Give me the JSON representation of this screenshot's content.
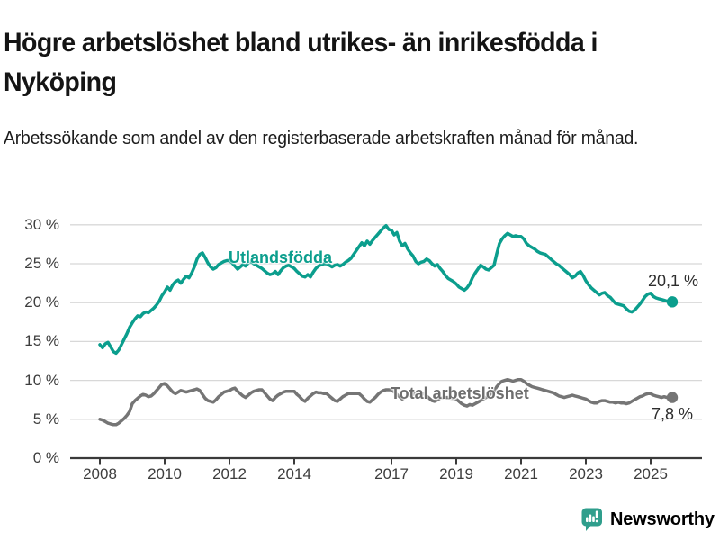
{
  "header": {
    "title": "Högre arbetslöshet bland utrikes- än inrikesfödda i Nyköping",
    "subtitle": "Arbetssökande som andel av den registerbaserade arbetskraften månad för månad."
  },
  "chart_data": {
    "type": "line",
    "title": "Högre arbetslöshet bland utrikes- än inrikesfödda i Nyköping",
    "subtitle": "Arbetssökande som andel av den registerbaserade arbetskraften månad för månad.",
    "unit": "%",
    "grid": "horizontal",
    "legend_position": "inline-annotations",
    "x_axis": {
      "start_year": 2008,
      "points_per_year": 12,
      "tick_years": [
        2008,
        2010,
        2012,
        2014,
        2017,
        2019,
        2021,
        2023,
        2025
      ]
    },
    "y_axis": {
      "ticks": [
        0,
        5,
        10,
        15,
        20,
        25,
        30
      ],
      "tick_suffix": " %",
      "ylim": [
        0,
        31
      ]
    },
    "series": [
      {
        "name": "Utlandsfödda",
        "color": "#0b9e8d",
        "end_label": "20,1 %",
        "end_value": 20.1,
        "values": [
          14.6,
          14.2,
          14.7,
          14.9,
          14.3,
          13.7,
          13.5,
          13.9,
          14.6,
          15.3,
          16.0,
          16.8,
          17.4,
          17.9,
          18.3,
          18.2,
          18.6,
          18.8,
          18.7,
          19.0,
          19.3,
          19.7,
          20.2,
          20.9,
          21.4,
          22.0,
          21.6,
          22.3,
          22.7,
          22.9,
          22.5,
          23.0,
          23.4,
          23.2,
          23.8,
          24.6,
          25.6,
          26.2,
          26.4,
          25.8,
          25.1,
          24.6,
          24.3,
          24.5,
          24.9,
          25.1,
          25.3,
          25.4,
          25.4,
          25.1,
          24.7,
          24.3,
          24.6,
          24.9,
          24.7,
          25.1,
          25.3,
          25.0,
          24.8,
          24.6,
          24.4,
          24.1,
          23.8,
          23.6,
          23.7,
          24.0,
          23.6,
          24.1,
          24.5,
          24.7,
          24.8,
          24.6,
          24.4,
          24.0,
          23.7,
          23.4,
          23.3,
          23.6,
          23.3,
          23.9,
          24.4,
          24.7,
          24.9,
          25.0,
          25.0,
          24.8,
          24.6,
          24.8,
          24.9,
          24.7,
          24.9,
          25.2,
          25.4,
          25.7,
          26.2,
          26.7,
          27.2,
          27.7,
          27.3,
          27.9,
          27.5,
          28.0,
          28.4,
          28.8,
          29.2,
          29.6,
          29.9,
          29.4,
          29.3,
          28.7,
          29.0,
          27.9,
          27.3,
          27.6,
          26.9,
          26.4,
          26.0,
          25.3,
          25.0,
          25.2,
          25.3,
          25.6,
          25.4,
          25.0,
          24.7,
          24.9,
          24.4,
          24.0,
          23.5,
          23.1,
          22.9,
          22.7,
          22.4,
          22.0,
          21.8,
          21.6,
          21.9,
          22.4,
          23.2,
          23.8,
          24.3,
          24.8,
          24.6,
          24.3,
          24.2,
          24.5,
          24.8,
          26.3,
          27.6,
          28.2,
          28.6,
          28.9,
          28.7,
          28.5,
          28.6,
          28.5,
          28.5,
          28.2,
          27.6,
          27.3,
          27.1,
          26.9,
          26.6,
          26.4,
          26.3,
          26.2,
          25.9,
          25.6,
          25.3,
          25.0,
          24.8,
          24.5,
          24.2,
          23.9,
          23.6,
          23.2,
          23.4,
          23.8,
          24.0,
          23.5,
          22.8,
          22.3,
          21.9,
          21.6,
          21.3,
          21.0,
          21.2,
          21.3,
          20.9,
          20.7,
          20.3,
          19.9,
          19.8,
          19.7,
          19.6,
          19.2,
          18.9,
          18.8,
          19.0,
          19.4,
          19.8,
          20.3,
          20.8,
          21.1,
          21.2,
          20.8,
          20.6,
          20.5,
          20.4,
          20.3,
          20.2,
          20.0,
          20.1
        ]
      },
      {
        "name": "Total arbetslöshet",
        "color": "#757575",
        "end_label": "7,8 %",
        "end_value": 7.8,
        "values": [
          5.0,
          4.9,
          4.7,
          4.5,
          4.4,
          4.3,
          4.3,
          4.5,
          4.8,
          5.1,
          5.5,
          6.0,
          7.0,
          7.4,
          7.7,
          8.0,
          8.2,
          8.1,
          7.9,
          8.0,
          8.3,
          8.7,
          9.1,
          9.5,
          9.6,
          9.3,
          8.9,
          8.5,
          8.3,
          8.5,
          8.7,
          8.6,
          8.5,
          8.6,
          8.7,
          8.8,
          8.9,
          8.7,
          8.2,
          7.7,
          7.4,
          7.3,
          7.2,
          7.5,
          7.9,
          8.2,
          8.5,
          8.6,
          8.7,
          8.9,
          9.0,
          8.6,
          8.3,
          8.0,
          7.8,
          8.1,
          8.4,
          8.6,
          8.7,
          8.8,
          8.8,
          8.4,
          8.0,
          7.6,
          7.4,
          7.8,
          8.1,
          8.3,
          8.5,
          8.6,
          8.6,
          8.6,
          8.6,
          8.2,
          7.9,
          7.5,
          7.3,
          7.7,
          8.0,
          8.3,
          8.5,
          8.4,
          8.4,
          8.3,
          8.3,
          8.0,
          7.7,
          7.4,
          7.3,
          7.6,
          7.9,
          8.1,
          8.3,
          8.3,
          8.3,
          8.3,
          8.3,
          8.0,
          7.6,
          7.3,
          7.2,
          7.5,
          7.8,
          8.2,
          8.5,
          8.7,
          8.8,
          8.8,
          8.8,
          8.5,
          8.2,
          7.9,
          7.6,
          7.8,
          8.0,
          8.1,
          8.2,
          8.3,
          8.3,
          8.3,
          8.3,
          8.0,
          7.7,
          7.4,
          7.3,
          7.5,
          7.7,
          7.8,
          7.8,
          7.8,
          7.7,
          7.7,
          7.6,
          7.3,
          7.0,
          6.8,
          6.7,
          6.9,
          6.8,
          7.0,
          7.2,
          7.4,
          7.6,
          7.8,
          8.0,
          8.2,
          8.6,
          9.2,
          9.6,
          9.9,
          10.0,
          10.1,
          10.0,
          9.9,
          10.0,
          10.1,
          10.1,
          9.9,
          9.6,
          9.4,
          9.2,
          9.1,
          9.0,
          8.9,
          8.8,
          8.7,
          8.6,
          8.5,
          8.4,
          8.2,
          8.0,
          7.9,
          7.8,
          7.9,
          8.0,
          8.1,
          8.0,
          7.9,
          7.8,
          7.7,
          7.6,
          7.4,
          7.2,
          7.1,
          7.1,
          7.3,
          7.4,
          7.4,
          7.3,
          7.2,
          7.2,
          7.1,
          7.2,
          7.1,
          7.1,
          7.0,
          7.1,
          7.3,
          7.5,
          7.7,
          7.9,
          8.0,
          8.2,
          8.3,
          8.3,
          8.1,
          8.0,
          7.9,
          7.8,
          7.9,
          7.8,
          7.7,
          7.8
        ]
      }
    ]
  },
  "footer": {
    "brand": "Newsworthy"
  },
  "colors": {
    "teal": "#0b9e8d",
    "gray": "#757575",
    "gray_label": "#6e6e6e",
    "logo": "#2f9e8c",
    "grid": "#d8d8d8",
    "axis": "#3a3a3a",
    "tick_text": "#3d3d3d"
  }
}
